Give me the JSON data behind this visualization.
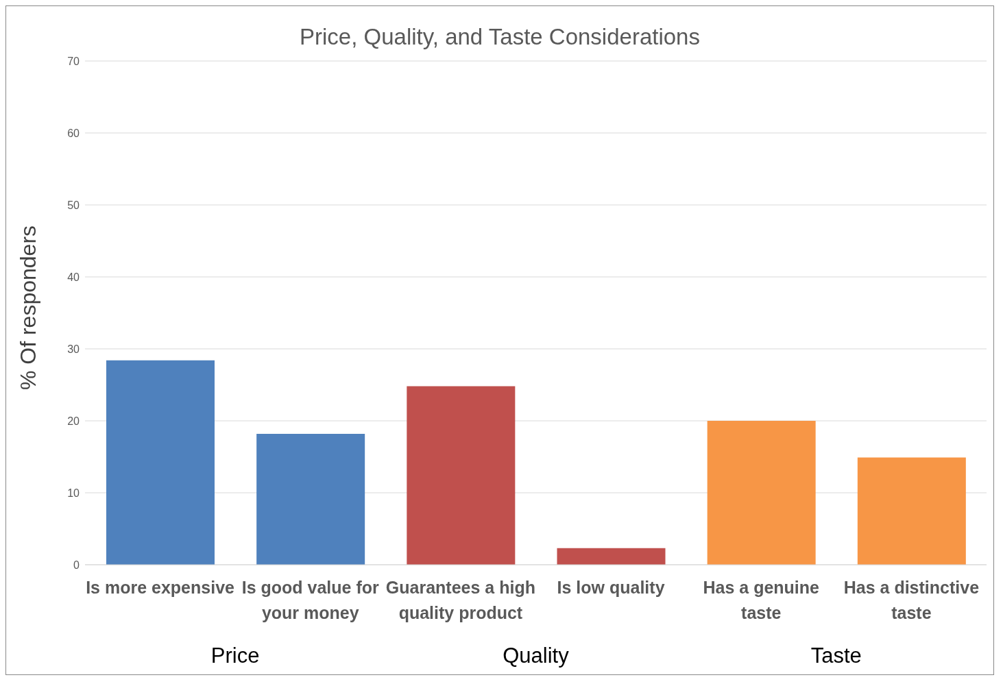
{
  "chart_data": {
    "type": "bar",
    "title": "Price, Quality, and Taste Considerations",
    "ylabel": "% Of responders",
    "categories": [
      "Is more expensive",
      "Is good value for your money",
      "Guarantees a high quality product",
      "Is low quality",
      "Has a genuine taste",
      "Has a distinctive taste"
    ],
    "values": [
      28.4,
      18.2,
      24.8,
      2.3,
      20.0,
      14.9
    ],
    "colors": [
      "#4f81bd",
      "#4f81bd",
      "#c0504d",
      "#c0504d",
      "#f79646",
      "#f79646"
    ],
    "ylim": [
      0,
      70
    ],
    "yticks": [
      0,
      10,
      20,
      30,
      40,
      50,
      60,
      70
    ],
    "grid": "y",
    "legend": false,
    "annotations": [
      "Price",
      "Quality",
      "Taste"
    ]
  }
}
